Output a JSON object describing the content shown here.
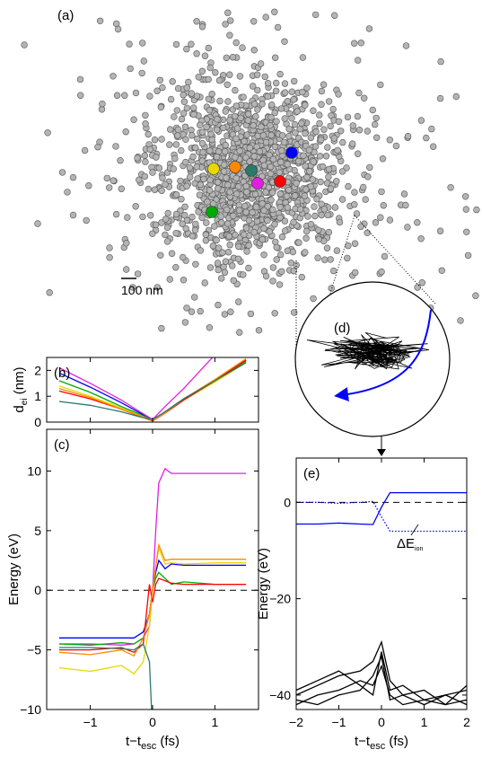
{
  "chart_data": [
    {
      "type": "image",
      "label": "(a)",
      "scale_label": "100 nm"
    },
    {
      "type": "line",
      "label": "(b)",
      "ylabel": "d",
      "ylabel_sub": "ei",
      "ylabel_unit": " (nm)",
      "xlim": [
        -1.7,
        1.7
      ],
      "ylim": [
        0,
        2.5
      ],
      "xticks": [
        -1,
        0,
        1
      ],
      "xticklabels": false,
      "yticks": [
        0,
        1,
        2
      ],
      "x": [
        -1.5,
        -1,
        -0.5,
        -0.2,
        0,
        0.2,
        0.5,
        1,
        1.5
      ],
      "series": [
        {
          "color": "#e020e0",
          "values": [
            2.1,
            1.5,
            0.85,
            0.4,
            0.1,
            0.6,
            1.3,
            2.6,
            3.5
          ]
        },
        {
          "color": "#0000ff",
          "values": [
            1.9,
            1.35,
            0.75,
            0.35,
            0.05,
            0.4,
            0.9,
            1.6,
            2.4
          ]
        },
        {
          "color": "#00aa00",
          "values": [
            1.6,
            1.15,
            0.6,
            0.3,
            0.05,
            0.4,
            0.9,
            1.6,
            2.35
          ]
        },
        {
          "color": "#e8d800",
          "values": [
            1.4,
            1.0,
            0.55,
            0.25,
            0.08,
            0.35,
            0.85,
            1.55,
            2.3
          ]
        },
        {
          "color": "#ff0000",
          "values": [
            1.2,
            0.9,
            0.5,
            0.22,
            0.05,
            0.35,
            0.85,
            1.6,
            2.4
          ]
        },
        {
          "color": "#ff8800",
          "values": [
            1.3,
            0.95,
            0.5,
            0.24,
            0.06,
            0.36,
            0.9,
            1.65,
            2.45
          ]
        },
        {
          "color": "#2a7a6a",
          "values": [
            0.8,
            0.65,
            0.4,
            0.2,
            0.1,
            0.4,
            0.9,
            1.6,
            2.3
          ]
        }
      ]
    },
    {
      "type": "line",
      "label": "(c)",
      "ylabel": "Energy (eV)",
      "xlabel": "t−t",
      "xlabel_sub": "esc",
      "xlabel_unit": " (fs)",
      "xlim": [
        -1.7,
        1.7
      ],
      "ylim": [
        -10,
        13.5
      ],
      "xticks": [
        {
          "value": -1,
          "label": "−1"
        },
        0,
        1
      ],
      "yticks": [
        {
          "value": -10,
          "label": "−10"
        },
        {
          "value": -5,
          "label": "−5"
        },
        0,
        5,
        10
      ],
      "hline": 0,
      "x": [
        -1.5,
        -1,
        -0.5,
        -0.3,
        -0.15,
        -0.05,
        0,
        0.05,
        0.1,
        0.2,
        0.3,
        0.5,
        1,
        1.5
      ],
      "series": [
        {
          "color": "#e020e0",
          "values": [
            -4.5,
            -4.5,
            -4.6,
            -4.5,
            -4,
            -3,
            0,
            5,
            9,
            10.2,
            9.8,
            9.8,
            9.8,
            9.8
          ]
        },
        {
          "color": "#0000ff",
          "values": [
            -4,
            -4,
            -4,
            -4,
            -3.5,
            -2,
            0,
            1.5,
            2.5,
            1.8,
            2.2,
            2.1,
            2.1,
            2.1
          ]
        },
        {
          "color": "#00aa00",
          "values": [
            -4.5,
            -4.6,
            -4.4,
            -4.5,
            -4,
            -2,
            0,
            1,
            1.5,
            1,
            0.5,
            0.7,
            0.5,
            0.5
          ]
        },
        {
          "color": "#e8d800",
          "values": [
            -6.5,
            -6.8,
            -6.3,
            -7,
            -6,
            -3,
            0,
            2,
            3.5,
            2.2,
            2.3,
            2.2,
            2.3,
            2.3
          ]
        },
        {
          "color": "#ff0000",
          "values": [
            -5,
            -5,
            -4.8,
            -5.2,
            -4.5,
            0.5,
            -1,
            0.5,
            1,
            0.8,
            0.6,
            0.5,
            0.5,
            0.5
          ]
        },
        {
          "color": "#ff8800",
          "values": [
            -5.2,
            -5.4,
            -5,
            -5.5,
            -4,
            -2,
            0,
            2,
            3.8,
            2.5,
            2.6,
            2.6,
            2.6,
            2.6
          ]
        },
        {
          "color": "#2a7a6a",
          "values": [
            -4.8,
            -4.8,
            -4.9,
            -5,
            -4.5,
            -6,
            -12,
            null,
            null,
            null,
            null,
            null,
            null,
            null
          ]
        }
      ]
    },
    {
      "type": "inset",
      "label": "(d)"
    },
    {
      "type": "line",
      "label": "(e)",
      "ylabel": "Energy (eV)",
      "xlabel": "t−t",
      "xlabel_sub": "esc",
      "xlabel_unit": " (fs)",
      "annotation": "ΔE",
      "annotation_sub": "ion",
      "xlim": [
        -2,
        2
      ],
      "ylim": [
        -43,
        9.2
      ],
      "xticks": [
        {
          "value": -2,
          "label": "−2"
        },
        {
          "value": -1,
          "label": "−1"
        },
        0,
        1,
        2
      ],
      "yticks": [
        {
          "value": -40,
          "label": "−40"
        },
        {
          "value": -20,
          "label": "−20"
        },
        0
      ],
      "hline": 0,
      "x": [
        -2,
        -1.5,
        -1,
        -0.5,
        -0.2,
        0,
        0.2,
        0.5,
        1,
        1.5,
        2
      ],
      "series": [
        {
          "color": "#0000ff",
          "values": [
            -4.5,
            -4.5,
            -4.3,
            -4.5,
            -4.6,
            -1,
            2,
            2,
            2,
            2,
            2
          ]
        },
        {
          "color": "#0000ff",
          "style": "dotted",
          "values": [
            0,
            0,
            -0.2,
            0,
            0.2,
            -3,
            -6,
            -6,
            -6,
            -6,
            -6
          ]
        },
        {
          "color": "#000000",
          "values": [
            -40,
            -38,
            -36,
            -35,
            -33,
            -29,
            -37,
            -40,
            -39,
            -42,
            -38
          ]
        },
        {
          "color": "#000000",
          "values": [
            -42,
            -40,
            -39,
            -37,
            -38,
            -34,
            -40,
            -42,
            -41,
            -40,
            -39
          ]
        },
        {
          "color": "#000000",
          "values": [
            -39,
            -37,
            -35,
            -38,
            -40,
            -31,
            -39,
            -38,
            -41,
            -42,
            -41
          ]
        },
        {
          "color": "#000000",
          "values": [
            -41,
            -42,
            -40,
            -39,
            -36,
            -32,
            -41,
            -40,
            -42,
            -40,
            -42
          ]
        }
      ]
    }
  ]
}
